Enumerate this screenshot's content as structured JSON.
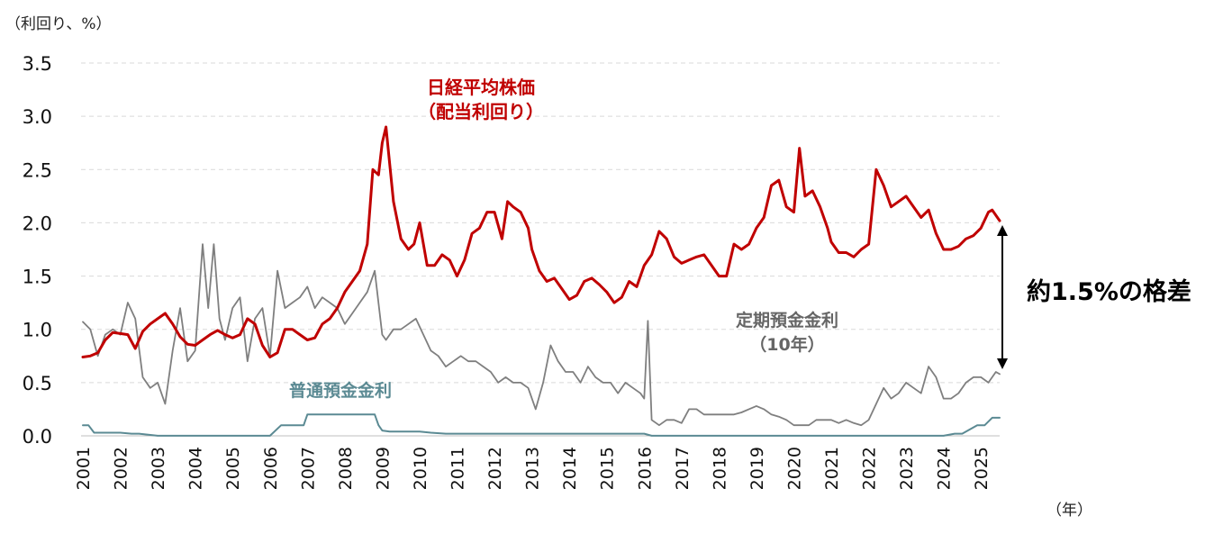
{
  "chart_data": {
    "type": "line",
    "ylabel": "（利回り、%）",
    "xlabel": "（年）",
    "ylim": [
      0,
      3.5
    ],
    "xlim": [
      2001,
      2025.5
    ],
    "yticks": [
      "0.0",
      "0.5",
      "1.0",
      "1.5",
      "2.0",
      "2.5",
      "3.0",
      "3.5"
    ],
    "xticks": [
      "2001",
      "2002",
      "2003",
      "2004",
      "2005",
      "2006",
      "2007",
      "2008",
      "2009",
      "2010",
      "2011",
      "2012",
      "2013",
      "2014",
      "2015",
      "2016",
      "2017",
      "2018",
      "2019",
      "2020",
      "2021",
      "2022",
      "2023",
      "2024",
      "2025"
    ],
    "grid": "horizontal dashed",
    "annotation": "約1.5%の格差",
    "series": [
      {
        "name": "日経平均株価",
        "name_line2": "（配当利回り）",
        "color": "#c00000",
        "x": [
          2001.0,
          2001.2,
          2001.4,
          2001.6,
          2001.8,
          2002.0,
          2002.2,
          2002.4,
          2002.6,
          2002.8,
          2003.0,
          2003.2,
          2003.4,
          2003.6,
          2003.8,
          2004.0,
          2004.2,
          2004.4,
          2004.6,
          2004.8,
          2005.0,
          2005.2,
          2005.4,
          2005.6,
          2005.8,
          2006.0,
          2006.2,
          2006.4,
          2006.6,
          2006.8,
          2007.0,
          2007.2,
          2007.4,
          2007.6,
          2007.8,
          2008.0,
          2008.2,
          2008.4,
          2008.6,
          2008.75,
          2008.9,
          2009.0,
          2009.1,
          2009.3,
          2009.5,
          2009.7,
          2009.85,
          2010.0,
          2010.2,
          2010.4,
          2010.6,
          2010.8,
          2011.0,
          2011.2,
          2011.4,
          2011.6,
          2011.8,
          2012.0,
          2012.2,
          2012.35,
          2012.5,
          2012.7,
          2012.9,
          2013.0,
          2013.2,
          2013.4,
          2013.6,
          2013.8,
          2014.0,
          2014.2,
          2014.4,
          2014.6,
          2014.8,
          2015.0,
          2015.2,
          2015.4,
          2015.6,
          2015.8,
          2016.0,
          2016.2,
          2016.4,
          2016.6,
          2016.8,
          2017.0,
          2017.2,
          2017.4,
          2017.6,
          2017.8,
          2018.0,
          2018.2,
          2018.4,
          2018.6,
          2018.8,
          2019.0,
          2019.2,
          2019.4,
          2019.6,
          2019.8,
          2020.0,
          2020.15,
          2020.3,
          2020.5,
          2020.7,
          2020.9,
          2021.0,
          2021.2,
          2021.4,
          2021.6,
          2021.8,
          2022.0,
          2022.2,
          2022.4,
          2022.6,
          2022.8,
          2023.0,
          2023.2,
          2023.4,
          2023.6,
          2023.8,
          2024.0,
          2024.2,
          2024.4,
          2024.6,
          2024.8,
          2025.0,
          2025.2,
          2025.3,
          2025.5
        ],
        "values": [
          0.74,
          0.75,
          0.78,
          0.9,
          0.97,
          0.96,
          0.95,
          0.82,
          0.98,
          1.05,
          1.1,
          1.15,
          1.05,
          0.93,
          0.86,
          0.85,
          0.9,
          0.95,
          0.99,
          0.95,
          0.92,
          0.95,
          1.1,
          1.05,
          0.85,
          0.74,
          0.78,
          1.0,
          1.0,
          0.95,
          0.9,
          0.92,
          1.05,
          1.1,
          1.2,
          1.35,
          1.45,
          1.55,
          1.8,
          2.5,
          2.45,
          2.75,
          2.9,
          2.2,
          1.85,
          1.75,
          1.8,
          2.0,
          1.6,
          1.6,
          1.7,
          1.65,
          1.5,
          1.65,
          1.9,
          1.95,
          2.1,
          2.1,
          1.85,
          2.2,
          2.15,
          2.1,
          1.95,
          1.75,
          1.55,
          1.45,
          1.48,
          1.38,
          1.28,
          1.32,
          1.45,
          1.48,
          1.42,
          1.35,
          1.25,
          1.3,
          1.45,
          1.4,
          1.6,
          1.7,
          1.92,
          1.85,
          1.68,
          1.62,
          1.65,
          1.68,
          1.7,
          1.6,
          1.5,
          1.5,
          1.8,
          1.75,
          1.8,
          1.95,
          2.05,
          2.35,
          2.4,
          2.15,
          2.1,
          2.7,
          2.25,
          2.3,
          2.15,
          1.95,
          1.82,
          1.72,
          1.72,
          1.68,
          1.75,
          1.8,
          2.5,
          2.35,
          2.15,
          2.2,
          2.25,
          2.15,
          2.05,
          2.12,
          1.9,
          1.75,
          1.75,
          1.78,
          1.85,
          1.88,
          1.95,
          2.1,
          2.12,
          2.02
        ]
      },
      {
        "name": "定期預金金利",
        "name_line2": "（10年）",
        "color": "#7f7f7f",
        "x": [
          2001.0,
          2001.2,
          2001.4,
          2001.6,
          2001.8,
          2002.0,
          2002.2,
          2002.4,
          2002.6,
          2002.8,
          2003.0,
          2003.2,
          2003.4,
          2003.6,
          2003.8,
          2004.0,
          2004.2,
          2004.35,
          2004.5,
          2004.65,
          2004.8,
          2005.0,
          2005.2,
          2005.4,
          2005.6,
          2005.8,
          2006.0,
          2006.2,
          2006.4,
          2006.6,
          2006.8,
          2007.0,
          2007.2,
          2007.4,
          2007.6,
          2007.8,
          2008.0,
          2008.2,
          2008.4,
          2008.6,
          2008.8,
          2009.0,
          2009.1,
          2009.3,
          2009.5,
          2009.7,
          2009.9,
          2010.1,
          2010.3,
          2010.5,
          2010.7,
          2010.9,
          2011.1,
          2011.3,
          2011.5,
          2011.7,
          2011.9,
          2012.1,
          2012.3,
          2012.5,
          2012.7,
          2012.9,
          2013.1,
          2013.3,
          2013.5,
          2013.7,
          2013.9,
          2014.1,
          2014.3,
          2014.5,
          2014.7,
          2014.9,
          2015.1,
          2015.3,
          2015.5,
          2015.7,
          2015.9,
          2016.0,
          2016.1,
          2016.2,
          2016.4,
          2016.6,
          2016.8,
          2017.0,
          2017.2,
          2017.4,
          2017.6,
          2017.8,
          2018.0,
          2018.2,
          2018.4,
          2018.6,
          2018.8,
          2019.0,
          2019.2,
          2019.4,
          2019.6,
          2019.8,
          2020.0,
          2020.2,
          2020.4,
          2020.6,
          2020.8,
          2021.0,
          2021.2,
          2021.4,
          2021.6,
          2021.8,
          2022.0,
          2022.2,
          2022.4,
          2022.6,
          2022.8,
          2023.0,
          2023.2,
          2023.4,
          2023.6,
          2023.8,
          2024.0,
          2024.2,
          2024.4,
          2024.6,
          2024.8,
          2025.0,
          2025.2,
          2025.4,
          2025.5
        ],
        "values": [
          1.07,
          1.0,
          0.75,
          0.95,
          1.0,
          0.95,
          1.25,
          1.1,
          0.55,
          0.45,
          0.5,
          0.3,
          0.8,
          1.2,
          0.7,
          0.8,
          1.8,
          1.2,
          1.8,
          1.1,
          0.9,
          1.2,
          1.3,
          0.7,
          1.1,
          1.2,
          0.75,
          1.55,
          1.2,
          1.25,
          1.3,
          1.4,
          1.2,
          1.3,
          1.25,
          1.2,
          1.05,
          1.15,
          1.25,
          1.35,
          1.55,
          0.95,
          0.9,
          1.0,
          1.0,
          1.05,
          1.1,
          0.95,
          0.8,
          0.75,
          0.65,
          0.7,
          0.75,
          0.7,
          0.7,
          0.65,
          0.6,
          0.5,
          0.55,
          0.5,
          0.5,
          0.45,
          0.25,
          0.5,
          0.85,
          0.7,
          0.6,
          0.6,
          0.5,
          0.65,
          0.55,
          0.5,
          0.5,
          0.4,
          0.5,
          0.45,
          0.4,
          0.35,
          1.08,
          0.15,
          0.1,
          0.15,
          0.15,
          0.12,
          0.25,
          0.25,
          0.2,
          0.2,
          0.2,
          0.2,
          0.2,
          0.22,
          0.25,
          0.28,
          0.25,
          0.2,
          0.18,
          0.15,
          0.1,
          0.1,
          0.1,
          0.15,
          0.15,
          0.15,
          0.12,
          0.15,
          0.12,
          0.1,
          0.15,
          0.3,
          0.45,
          0.35,
          0.4,
          0.5,
          0.45,
          0.4,
          0.65,
          0.55,
          0.35,
          0.35,
          0.4,
          0.5,
          0.55,
          0.55,
          0.5,
          0.6,
          0.58
        ]
      },
      {
        "name": "普通預金金利",
        "color": "#5b8a93",
        "x": [
          2001.0,
          2001.15,
          2001.3,
          2002.0,
          2002.3,
          2002.5,
          2003.0,
          2006.0,
          2006.3,
          2006.5,
          2006.9,
          2007.0,
          2007.2,
          2007.5,
          2008.0,
          2008.5,
          2008.8,
          2008.9,
          2009.0,
          2009.2,
          2010.0,
          2010.3,
          2010.7,
          2011.0,
          2016.0,
          2016.2,
          2016.5,
          2024.0,
          2024.3,
          2024.5,
          2024.9,
          2025.0,
          2025.1,
          2025.3,
          2025.5
        ],
        "values": [
          0.1,
          0.1,
          0.03,
          0.03,
          0.02,
          0.02,
          0.001,
          0.001,
          0.1,
          0.1,
          0.1,
          0.2,
          0.2,
          0.2,
          0.2,
          0.2,
          0.2,
          0.1,
          0.05,
          0.04,
          0.04,
          0.03,
          0.02,
          0.02,
          0.02,
          0.001,
          0.001,
          0.001,
          0.02,
          0.02,
          0.1,
          0.1,
          0.1,
          0.17,
          0.17
        ]
      }
    ]
  }
}
